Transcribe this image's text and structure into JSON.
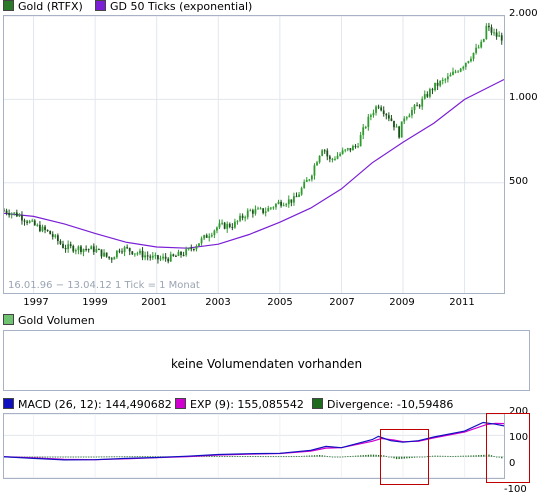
{
  "legend_main": [
    {
      "label": "Gold (RTFX)",
      "color": "#2a7a2a"
    },
    {
      "label": "GD 50 Ticks (exponential)",
      "color": "#7b1fd6"
    }
  ],
  "volume_legend": {
    "label": "Gold Volumen",
    "color": "#6fc26f"
  },
  "volume_message": "keine Volumendaten vorhanden",
  "macd_legend": [
    {
      "label": "MACD (26, 12): 144,490682",
      "color": "#1010c0"
    },
    {
      "label": "EXP (9): 155,085542",
      "color": "#d000d0"
    },
    {
      "label": "Divergence: -10,59486",
      "color": "#1d6b1d"
    }
  ],
  "chart_info": "16.01.96 − 13.04.12   1 Tick = 1 Monat",
  "chart_data": [
    {
      "type": "line",
      "title": "",
      "scale": "log",
      "x_tick_labels": [
        "1997",
        "1999",
        "2001",
        "2003",
        "2005",
        "2007",
        "2009",
        "2011"
      ],
      "y_tick_labels": [
        "2.000",
        "1.000",
        "500"
      ],
      "y_ticks": [
        2000,
        1000,
        500
      ],
      "ylim": [
        240,
        2000
      ],
      "xlim": [
        1996.04,
        2012.28
      ],
      "series": [
        {
          "name": "Gold (RTFX)",
          "color": "#2a7a2a",
          "style": "candles",
          "x": [
            1996.0,
            1996.5,
            1997.0,
            1997.5,
            1998.0,
            1998.5,
            1999.0,
            1999.5,
            1999.8,
            2000.0,
            2000.5,
            2001.0,
            2001.5,
            2002.0,
            2002.5,
            2003.0,
            2003.5,
            2004.0,
            2004.5,
            2005.0,
            2005.5,
            2006.0,
            2006.4,
            2006.6,
            2007.0,
            2007.5,
            2008.0,
            2008.2,
            2008.6,
            2008.9,
            2009.0,
            2009.5,
            2010.0,
            2010.5,
            2011.0,
            2011.6,
            2011.7,
            2012.0,
            2012.28
          ],
          "y": [
            398,
            383,
            352,
            330,
            292,
            290,
            287,
            265,
            290,
            288,
            276,
            265,
            268,
            282,
            313,
            348,
            352,
            395,
            395,
            425,
            435,
            530,
            680,
            600,
            640,
            680,
            900,
            960,
            850,
            740,
            860,
            950,
            1110,
            1200,
            1350,
            1600,
            1830,
            1700,
            1660
          ]
        },
        {
          "name": "GD 50 Ticks (exponential)",
          "color": "#7b1fd6",
          "style": "line",
          "x": [
            1996.0,
            1997.0,
            1998.0,
            1999.0,
            2000.0,
            2001.0,
            2002.0,
            2003.0,
            2004.0,
            2005.0,
            2006.0,
            2007.0,
            2008.0,
            2009.0,
            2010.0,
            2011.0,
            2012.28
          ],
          "y": [
            388,
            378,
            355,
            328,
            305,
            293,
            290,
            300,
            325,
            360,
            405,
            475,
            590,
            700,
            820,
            1000,
            1180
          ]
        }
      ]
    },
    {
      "type": "line",
      "title": "",
      "y_tick_labels": [
        "200",
        "100",
        "0",
        "-100"
      ],
      "y_ticks": [
        200,
        100,
        0,
        -100
      ],
      "ylim": [
        -100,
        200
      ],
      "xlim": [
        1996.04,
        2012.28
      ],
      "series": [
        {
          "name": "MACD (26, 12): 144,490682",
          "color": "#1010c0",
          "x": [
            1996.0,
            1997.0,
            1998.0,
            1999.0,
            2000.0,
            2001.0,
            2002.0,
            2003.0,
            2004.0,
            2005.0,
            2006.0,
            2006.5,
            2007.0,
            2008.0,
            2008.2,
            2008.6,
            2009.0,
            2009.5,
            2010.0,
            2011.0,
            2011.6,
            2012.0,
            2012.28
          ],
          "y": [
            0,
            -8,
            -15,
            -14,
            -8,
            -4,
            2,
            10,
            14,
            16,
            30,
            48,
            42,
            80,
            95,
            75,
            68,
            75,
            92,
            120,
            160,
            152,
            144
          ]
        },
        {
          "name": "EXP (9): 155,085542",
          "color": "#d000d0",
          "x": [
            1996.0,
            1997.0,
            1998.0,
            1999.0,
            2000.0,
            2001.0,
            2002.0,
            2003.0,
            2004.0,
            2005.0,
            2006.0,
            2006.5,
            2007.0,
            2008.0,
            2008.3,
            2008.7,
            2009.0,
            2009.5,
            2010.0,
            2011.0,
            2011.7,
            2012.0,
            2012.28
          ],
          "y": [
            0,
            -6,
            -13,
            -14,
            -10,
            -5,
            0,
            8,
            12,
            15,
            26,
            40,
            42,
            72,
            85,
            78,
            70,
            72,
            88,
            115,
            150,
            156,
            155
          ]
        },
        {
          "name": "Divergence: -10,59486",
          "color": "#1d6b1d",
          "style": "bars",
          "x": [
            1996.5,
            1997.5,
            1998.5,
            1999.5,
            2000.5,
            2001.5,
            2002.5,
            2003.5,
            2004.5,
            2005.5,
            2006.3,
            2006.8,
            2007.5,
            2008.0,
            2008.4,
            2008.8,
            2009.3,
            2010.0,
            2010.6,
            2011.3,
            2011.8,
            2012.28
          ],
          "y": [
            -2,
            -3,
            -1,
            1,
            2,
            1,
            3,
            3,
            2,
            2,
            8,
            -2,
            5,
            10,
            6,
            -12,
            -6,
            5,
            3,
            6,
            10,
            -11
          ]
        }
      ]
    }
  ]
}
